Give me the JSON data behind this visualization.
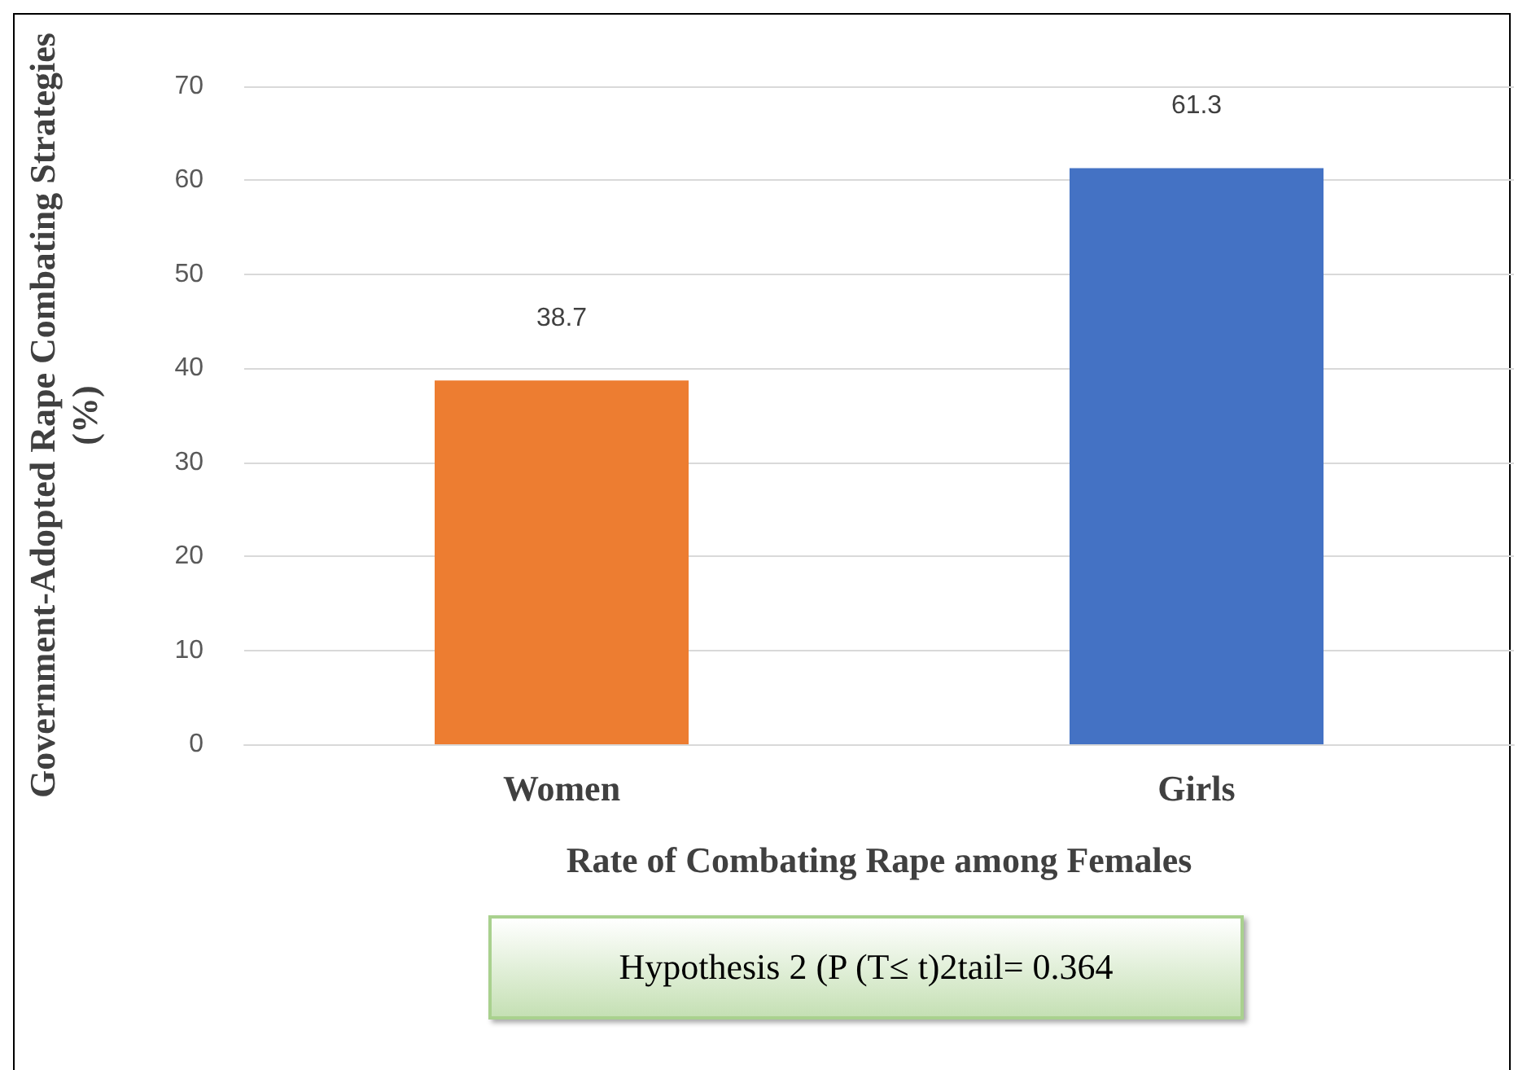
{
  "chart_data": {
    "type": "bar",
    "categories": [
      "Women",
      "Girls"
    ],
    "values": [
      38.7,
      61.3
    ],
    "colors": [
      "#ed7d31",
      "#4472c4"
    ],
    "xlabel": "Rate of Combating Rape among Females",
    "ylabel": "Government-Adopted Rape Combating Strategies (%)",
    "ylim": [
      0,
      70
    ],
    "yticks": [
      0,
      10,
      20,
      30,
      40,
      50,
      60,
      70
    ],
    "grid": "y",
    "data_labels": true,
    "annotations": [
      "Hypothesis 2 (P (T≤ t)2tail= 0.364"
    ]
  }
}
